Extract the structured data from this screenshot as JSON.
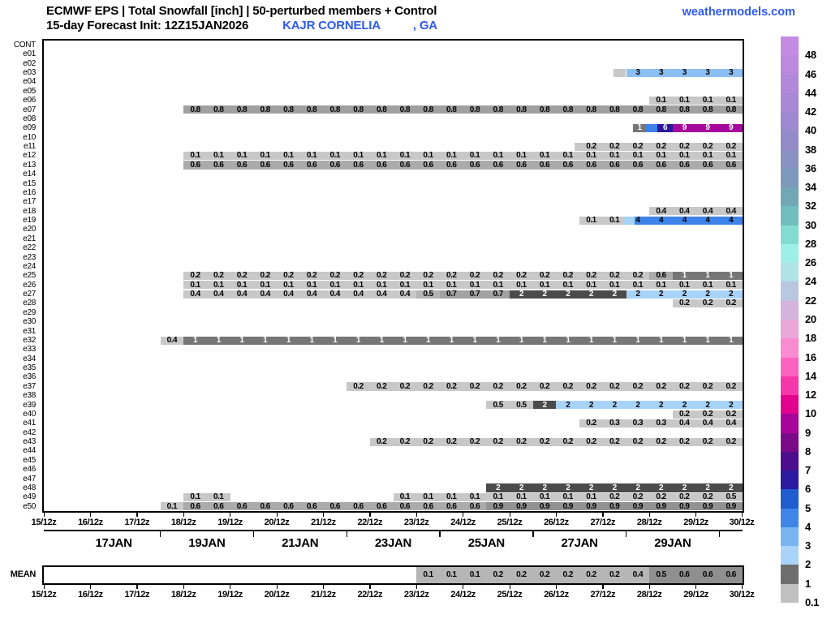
{
  "header": {
    "title": "ECMWF EPS | Total Snowfall [inch] | 50-perturbed members + Control",
    "init_label": "15-day Forecast Init: 12Z15JAN2026",
    "station": "KAJR CORNELIA",
    "state": ", GA",
    "site": "weathermodels.com"
  },
  "chart_data": {
    "type": "heatmap",
    "title": "ECMWF EPS | Total Snowfall [inch] | 50-perturbed members + Control",
    "x_range": [
      "15/12z",
      "30/12z"
    ],
    "n_cols": 30,
    "grid": "off",
    "legend_position": "right-colorbar",
    "x_ticks": [
      "15/12z",
      "16/12z",
      "17/12z",
      "18/12z",
      "19/12z",
      "20/12z",
      "21/12z",
      "22/12z",
      "23/12z",
      "24/12z",
      "25/12z",
      "26/12z",
      "27/12z",
      "28/12z",
      "29/12z",
      "30/12z"
    ],
    "day_labels": [
      "17JAN",
      "19JAN",
      "21JAN",
      "23JAN",
      "25JAN",
      "27JAN",
      "29JAN"
    ],
    "day_label_cells": [
      3,
      7,
      11,
      15,
      19,
      23,
      27
    ],
    "day_tick_cells": [
      5,
      9,
      13,
      17,
      21,
      25,
      29
    ],
    "palette": {
      "L": {
        "bg": "#c8c8c8",
        "tx": "#000000"
      },
      "L2": {
        "bg": "#b4b4b4",
        "tx": "#000000"
      },
      "M6": {
        "bg": "#ababab",
        "tx": "#000000"
      },
      "M7": {
        "bg": "#a2a2a2",
        "tx": "#000000"
      },
      "M8": {
        "bg": "#a0a0a0",
        "tx": "#000000"
      },
      "M9": {
        "bg": "#929292",
        "tx": "#000000"
      },
      "G1": {
        "bg": "#767676",
        "tx": "#ffffff"
      },
      "G2": {
        "bg": "#4b4b4b",
        "tx": "#ffffff"
      },
      "B2": {
        "bg": "#a8d3f8",
        "tx": "#000000"
      },
      "B3": {
        "bg": "#8cc0f4",
        "tx": "#000000"
      },
      "B4": {
        "bg": "#3c82e8",
        "tx": "#000000"
      },
      "NV": {
        "bg": "#2a199e",
        "tx": "#ffffff"
      },
      "MG": {
        "bg": "#a6089d",
        "tx": "#ffffff"
      },
      "ML": {
        "bg": "#b6b6b6",
        "tx": "#000000"
      },
      "MD": {
        "bg": "#8f8f8f",
        "tx": "#000000"
      }
    },
    "rows": [
      {
        "id": "CONT",
        "segs": []
      },
      {
        "id": "e01",
        "segs": []
      },
      {
        "id": "e02",
        "segs": []
      },
      {
        "id": "e03",
        "segs": [
          {
            "s": 24.45,
            "n": 0.55,
            "c": "L"
          },
          {
            "s": 25,
            "n": 5,
            "c": "B3",
            "ls": 25,
            "labels": [
              {
                "v": "3",
                "r": 5
              }
            ]
          }
        ]
      },
      {
        "id": "e04",
        "segs": []
      },
      {
        "id": "e05",
        "segs": []
      },
      {
        "id": "e06",
        "segs": [
          {
            "s": 26,
            "n": 4,
            "c": "L",
            "ls": 26,
            "labels": [
              {
                "v": "0.1",
                "r": 4
              }
            ]
          }
        ]
      },
      {
        "id": "e07",
        "segs": [
          {
            "s": 6,
            "n": 24,
            "c": "M8",
            "ls": 6,
            "labels": [
              {
                "v": "0.8",
                "r": 24
              }
            ]
          }
        ]
      },
      {
        "id": "e08",
        "segs": []
      },
      {
        "id": "e09",
        "segs": [
          {
            "s": 25.3,
            "n": 0.55,
            "c": "G1",
            "center": "1"
          },
          {
            "s": 25.85,
            "n": 0.5,
            "c": "B4"
          },
          {
            "s": 26.35,
            "n": 0.65,
            "c": "NV",
            "center": "6"
          },
          {
            "s": 27,
            "n": 3,
            "c": "MG",
            "ls": 27,
            "labels": [
              {
                "v": "9",
                "r": 3
              }
            ]
          }
        ]
      },
      {
        "id": "e10",
        "segs": []
      },
      {
        "id": "e11",
        "segs": [
          {
            "s": 22.8,
            "n": 7.2,
            "c": "L",
            "ls": 23,
            "labels": [
              {
                "v": "0.2",
                "r": 7
              }
            ]
          }
        ]
      },
      {
        "id": "e12",
        "segs": [
          {
            "s": 6,
            "n": 24,
            "c": "L",
            "ls": 6,
            "labels": [
              {
                "v": "0.1",
                "r": 24
              }
            ]
          }
        ]
      },
      {
        "id": "e13",
        "segs": [
          {
            "s": 6,
            "n": 24,
            "c": "M6",
            "ls": 6,
            "labels": [
              {
                "v": "0.6",
                "r": 24
              }
            ]
          }
        ]
      },
      {
        "id": "e14",
        "segs": []
      },
      {
        "id": "e15",
        "segs": []
      },
      {
        "id": "e16",
        "segs": []
      },
      {
        "id": "e17",
        "segs": []
      },
      {
        "id": "e18",
        "segs": [
          {
            "s": 26,
            "n": 4,
            "c": "L",
            "ls": 26,
            "labels": [
              {
                "v": "0.4",
                "r": 4
              }
            ]
          }
        ]
      },
      {
        "id": "e19",
        "segs": [
          {
            "s": 23,
            "n": 2,
            "c": "L",
            "ls": 23,
            "labels": [
              {
                "v": "0.1",
                "r": 2
              }
            ]
          },
          {
            "s": 24.9,
            "n": 0.45,
            "c": "B2"
          },
          {
            "s": 25.35,
            "n": 4.65,
            "c": "B4",
            "ls": 25,
            "labels": [
              {
                "v": "4",
                "r": 5
              }
            ]
          }
        ]
      },
      {
        "id": "e20",
        "segs": []
      },
      {
        "id": "e21",
        "segs": []
      },
      {
        "id": "e22",
        "segs": []
      },
      {
        "id": "e23",
        "segs": []
      },
      {
        "id": "e24",
        "segs": []
      },
      {
        "id": "e25",
        "segs": [
          {
            "s": 6,
            "n": 20,
            "c": "L",
            "ls": 6,
            "labels": [
              {
                "v": "0.2",
                "r": 20
              }
            ]
          },
          {
            "s": 26,
            "n": 1,
            "c": "M6",
            "center": "0.6"
          },
          {
            "s": 27,
            "n": 3,
            "c": "G1",
            "ls": 27,
            "labels": [
              {
                "v": "1",
                "r": 3
              }
            ]
          }
        ]
      },
      {
        "id": "e26",
        "segs": [
          {
            "s": 6,
            "n": 24,
            "c": "L",
            "ls": 6,
            "labels": [
              {
                "v": "0.1",
                "r": 24
              }
            ]
          }
        ]
      },
      {
        "id": "e27",
        "segs": [
          {
            "s": 6,
            "n": 10,
            "c": "L",
            "ls": 6,
            "labels": [
              {
                "v": "0.4",
                "r": 10
              }
            ]
          },
          {
            "s": 16,
            "n": 1,
            "c": "L2",
            "center": "0.5"
          },
          {
            "s": 17,
            "n": 3,
            "c": "M7",
            "ls": 17,
            "labels": [
              {
                "v": "0.7",
                "r": 3
              }
            ]
          },
          {
            "s": 20,
            "n": 5,
            "c": "G2",
            "ls": 20,
            "labels": [
              {
                "v": "2",
                "r": 5
              }
            ]
          },
          {
            "s": 25,
            "n": 5,
            "c": "B2",
            "ls": 25,
            "labels": [
              {
                "v": "2",
                "r": 5
              }
            ]
          }
        ]
      },
      {
        "id": "e28",
        "segs": [
          {
            "s": 27,
            "n": 3,
            "c": "L",
            "ls": 27,
            "labels": [
              {
                "v": "0.2",
                "r": 3
              }
            ]
          }
        ]
      },
      {
        "id": "e29",
        "segs": []
      },
      {
        "id": "e30",
        "segs": []
      },
      {
        "id": "e31",
        "segs": []
      },
      {
        "id": "e32",
        "segs": [
          {
            "s": 5,
            "n": 1,
            "c": "L",
            "center": "0.4"
          },
          {
            "s": 6,
            "n": 24,
            "c": "G1",
            "ls": 6,
            "labels": [
              {
                "v": "1",
                "r": 24
              }
            ]
          }
        ]
      },
      {
        "id": "e33",
        "segs": []
      },
      {
        "id": "e34",
        "segs": []
      },
      {
        "id": "e35",
        "segs": []
      },
      {
        "id": "e36",
        "segs": []
      },
      {
        "id": "e37",
        "segs": [
          {
            "s": 13,
            "n": 17,
            "c": "L",
            "ls": 13,
            "labels": [
              {
                "v": "0.2",
                "r": 17
              }
            ]
          }
        ]
      },
      {
        "id": "e38",
        "segs": []
      },
      {
        "id": "e39",
        "segs": [
          {
            "s": 19,
            "n": 2,
            "c": "L",
            "ls": 19,
            "labels": [
              {
                "v": "0.5",
                "r": 2
              }
            ]
          },
          {
            "s": 21,
            "n": 1,
            "c": "G2",
            "center": "2"
          },
          {
            "s": 22,
            "n": 8,
            "c": "B2",
            "ls": 22,
            "labels": [
              {
                "v": "2",
                "r": 8
              }
            ]
          }
        ]
      },
      {
        "id": "e40",
        "segs": [
          {
            "s": 27,
            "n": 3,
            "c": "L",
            "ls": 27,
            "labels": [
              {
                "v": "0.2",
                "r": 3
              }
            ]
          }
        ]
      },
      {
        "id": "e41",
        "segs": [
          {
            "s": 23,
            "n": 7,
            "c": "L",
            "ls": 23,
            "labels": [
              {
                "v": "0.2",
                "r": 1
              },
              {
                "v": "0.3",
                "r": 3
              },
              {
                "v": "0.4",
                "r": 3
              }
            ]
          }
        ]
      },
      {
        "id": "e42",
        "segs": []
      },
      {
        "id": "e43",
        "segs": [
          {
            "s": 14,
            "n": 16,
            "c": "L",
            "ls": 14,
            "labels": [
              {
                "v": "0.2",
                "r": 16
              }
            ]
          }
        ]
      },
      {
        "id": "e44",
        "segs": []
      },
      {
        "id": "e45",
        "segs": []
      },
      {
        "id": "e46",
        "segs": []
      },
      {
        "id": "e47",
        "segs": []
      },
      {
        "id": "e48",
        "segs": [
          {
            "s": 19,
            "n": 11,
            "c": "G2",
            "ls": 19,
            "labels": [
              {
                "v": "2",
                "r": 11
              }
            ]
          }
        ]
      },
      {
        "id": "e49",
        "segs": [
          {
            "s": 6,
            "n": 2,
            "c": "L",
            "ls": 6,
            "labels": [
              {
                "v": "0.1",
                "r": 2
              }
            ]
          },
          {
            "s": 15,
            "n": 15,
            "c": "L",
            "ls": 15,
            "labels": [
              {
                "v": "0.1",
                "r": 9
              },
              {
                "v": "0.2",
                "r": 5
              },
              {
                "v": "0.5",
                "r": 1
              }
            ]
          }
        ]
      },
      {
        "id": "e50",
        "segs": [
          {
            "s": 5,
            "n": 1,
            "c": "L",
            "center": "0.1"
          },
          {
            "s": 6,
            "n": 13,
            "c": "M6",
            "ls": 6,
            "labels": [
              {
                "v": "0.6",
                "r": 13
              }
            ]
          },
          {
            "s": 19,
            "n": 11,
            "c": "M9",
            "ls": 19,
            "labels": [
              {
                "v": "0.9",
                "r": 11
              }
            ]
          }
        ]
      }
    ],
    "mean": {
      "label": "MEAN",
      "segs": [
        {
          "s": 16,
          "n": 10,
          "c": "ML",
          "ls": 16,
          "labels": [
            {
              "v": "0.1",
              "r": 3
            },
            {
              "v": "0.2",
              "r": 6
            },
            {
              "v": "0.4",
              "r": 1
            }
          ]
        },
        {
          "s": 26,
          "n": 4,
          "c": "MD",
          "ls": 26,
          "labels": [
            {
              "v": "0.5",
              "r": 1
            },
            {
              "v": "0.6",
              "r": 3
            }
          ]
        }
      ]
    },
    "colorbar": {
      "ticks": [
        "0.1",
        "1",
        "2",
        "3",
        "4",
        "5",
        "6",
        "7",
        "8",
        "9",
        "10",
        "12",
        "14",
        "16",
        "18",
        "20",
        "22",
        "24",
        "26",
        "28",
        "30",
        "32",
        "34",
        "36",
        "38",
        "40",
        "42",
        "44",
        "46",
        "48"
      ],
      "band_colors": [
        "#c0c0c0",
        "#6e6e6e",
        "#a9d4f8",
        "#79b5f1",
        "#3f85e8",
        "#1f5ccd",
        "#2c1aa0",
        "#4c0e8c",
        "#7a0a88",
        "#a80499",
        "#e2008e",
        "#f637aa",
        "#fb63c0",
        "#f98bd0",
        "#eba7d8",
        "#d4b3dc",
        "#b9c7e0",
        "#b0e2e6",
        "#9ef0e7",
        "#82dcd0",
        "#70bebe",
        "#72a8b6",
        "#7d9abc",
        "#8992c2",
        "#948cc8",
        "#9f89d0",
        "#a988d6",
        "#b288da",
        "#bb89de",
        "#c48be2"
      ]
    }
  }
}
